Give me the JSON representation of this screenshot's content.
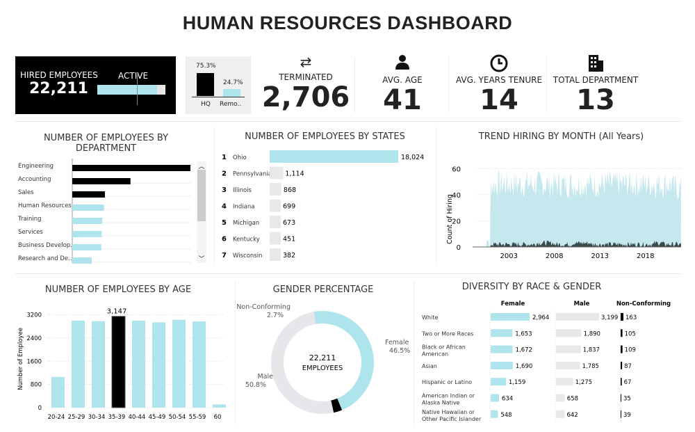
{
  "title": "HUMAN RESOURCES DASHBOARD",
  "colors": {
    "accent": "#aee4ec",
    "dark": "#000000",
    "gray": "#e6e6e6",
    "trend_term": "#3a4a4a"
  },
  "kpis": {
    "hired": {
      "label": "HIRED EMPLOYEES",
      "value": "22,211",
      "active_label": "ACTIVE",
      "active_fraction": 0.88
    },
    "location": {
      "hq_pct": "75.3%",
      "remote_pct": "24.7%",
      "hq_label": "HQ",
      "remote_label": "Remo..",
      "hq_value": 75.3,
      "remote_value": 24.7
    },
    "terminated": {
      "label": "TERMINATED",
      "value": "2,706",
      "icon": "swap-arrows-icon"
    },
    "avg_age": {
      "label": "AVG. AGE",
      "value": "41",
      "icon": "person-icon"
    },
    "tenure": {
      "label": "AVG. YEARS TENURE",
      "value": "14",
      "icon": "clock-icon"
    },
    "departments": {
      "label": "TOTAL DEPARTMENT",
      "value": "13",
      "icon": "building-icon"
    }
  },
  "chart_data": [
    {
      "id": "dept",
      "type": "bar",
      "title": "NUMBER OF EMPLOYEES BY DEPARTMENT",
      "categories": [
        "Engineering",
        "Accounting",
        "Sales",
        "Human Resources",
        "Training",
        "Services",
        "Business Develop..",
        "Research and De.."
      ],
      "values": [
        6700,
        3300,
        1850,
        1800,
        1700,
        1670,
        1650,
        1100
      ],
      "highlight": [
        true,
        true,
        true,
        false,
        false,
        false,
        false,
        false
      ]
    },
    {
      "id": "states",
      "type": "bar",
      "title": "NUMBER OF EMPLOYEES BY STATES",
      "ranks": [
        "1",
        "2",
        "3",
        "4",
        "5",
        "6",
        "7"
      ],
      "categories": [
        "Ohio",
        "Pennsylvania",
        "Illinois",
        "Indiana",
        "Michigan",
        "Kentucky",
        "Wisconsin"
      ],
      "values": [
        18024,
        1114,
        868,
        699,
        673,
        451,
        382
      ],
      "labels": [
        "18,024",
        "1,114",
        "868",
        "699",
        "673",
        "451",
        "382"
      ]
    },
    {
      "id": "trend",
      "type": "area",
      "title": "TREND HIRING BY MONTH (All Years)",
      "ylabel": "Count of Hiring",
      "yticks": [
        "0",
        "20",
        "40",
        "60"
      ],
      "ylim": [
        0,
        65
      ],
      "xticks": [
        "2003",
        "2008",
        "2013",
        "2018"
      ],
      "xrange": [
        2000,
        2021
      ],
      "series": [
        {
          "name": "Hired",
          "typical_monthly": [
            3,
            48,
            48,
            48,
            48,
            48,
            48,
            48,
            48,
            48,
            48,
            48,
            48,
            48,
            48,
            48,
            48,
            48,
            48,
            48,
            48,
            45
          ]
        },
        {
          "name": "Terminated",
          "typical_monthly": [
            0,
            2,
            2,
            2,
            2,
            2,
            3,
            3,
            2,
            2,
            3,
            3,
            2,
            2,
            2,
            2,
            2,
            2,
            2,
            3,
            2,
            2
          ]
        }
      ]
    },
    {
      "id": "age",
      "type": "bar",
      "title": "NUMBER OF EMPLOYEES BY AGE",
      "ylabel": "Number of Employee",
      "yticks": [
        "0",
        "800",
        "1600",
        "2400",
        "3200"
      ],
      "ylim": [
        0,
        3500
      ],
      "categories": [
        "20-24",
        "25-29",
        "30-34",
        "35-39",
        "40-44",
        "45-49",
        "50-54",
        "55-59",
        "60"
      ],
      "values": [
        1060,
        3000,
        2980,
        3147,
        3000,
        2940,
        3030,
        2970,
        110
      ],
      "highlight_label": "3,147"
    },
    {
      "id": "gender",
      "type": "pie",
      "title": "GENDER PERCENTAGE",
      "center_value": "22,211",
      "center_label": "EMPLOYEES",
      "slices": [
        {
          "name": "Female",
          "pct": 46.5,
          "label": "46.5%"
        },
        {
          "name": "Non-Conforming",
          "pct": 2.7,
          "label": "2.7%"
        },
        {
          "name": "Male",
          "pct": 50.8,
          "label": "50.8%"
        }
      ]
    },
    {
      "id": "diversity",
      "type": "bar",
      "title": "DIVERSITY BY RACE & GENDER",
      "columns": [
        "Female",
        "Male",
        "Non-Conforming"
      ],
      "categories": [
        "White",
        "Two or More Races",
        "Black or African American",
        "Asian",
        "Hispanic or Latino",
        "American Indian or Alaska Native",
        "Native Hawaiian or Other Pacific Islander"
      ],
      "female": [
        2964,
        1653,
        1672,
        1690,
        1159,
        634,
        548
      ],
      "male": [
        3199,
        1890,
        1837,
        1785,
        1275,
        658,
        642
      ],
      "nonconforming": [
        163,
        105,
        109,
        87,
        67,
        35,
        39
      ],
      "female_labels": [
        "2,964",
        "1,653",
        "1,672",
        "1,690",
        "1,159",
        "634",
        "548"
      ],
      "male_labels": [
        "3,199",
        "1,890",
        "1,837",
        "1,785",
        "1,275",
        "658",
        "642"
      ],
      "nc_labels": [
        "163",
        "105",
        "109",
        "87",
        "67",
        "35",
        "39"
      ]
    }
  ]
}
